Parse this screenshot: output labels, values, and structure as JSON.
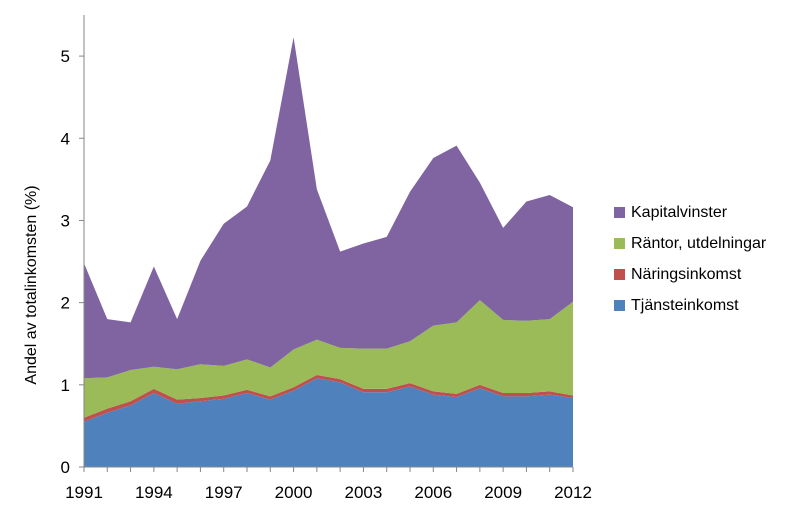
{
  "chart_data": {
    "type": "area",
    "stacked": true,
    "x": [
      1991,
      1992,
      1993,
      1994,
      1995,
      1996,
      1997,
      1998,
      1999,
      2000,
      2001,
      2002,
      2003,
      2004,
      2005,
      2006,
      2007,
      2008,
      2009,
      2010,
      2011,
      2012
    ],
    "xticks": [
      "1991",
      "1994",
      "1997",
      "2000",
      "2003",
      "2006",
      "2009",
      "2012"
    ],
    "ylabel": "Andel av totalinkomsten (%)",
    "ylim": [
      0,
      5.5
    ],
    "yticks": [
      "0",
      "1",
      "2",
      "3",
      "4",
      "5"
    ],
    "grid": false,
    "legend": "right",
    "series": [
      {
        "name": "Tjänsteinkomst",
        "color": "#4f81bd",
        "values": [
          0.55,
          0.66,
          0.75,
          0.9,
          0.77,
          0.8,
          0.83,
          0.9,
          0.82,
          0.93,
          1.08,
          1.03,
          0.91,
          0.91,
          0.98,
          0.88,
          0.85,
          0.96,
          0.86,
          0.86,
          0.88,
          0.84
        ]
      },
      {
        "name": "Näringsinkomst",
        "color": "#c0504d",
        "values": [
          0.05,
          0.05,
          0.05,
          0.05,
          0.05,
          0.04,
          0.04,
          0.04,
          0.04,
          0.04,
          0.04,
          0.04,
          0.04,
          0.04,
          0.04,
          0.04,
          0.04,
          0.04,
          0.04,
          0.04,
          0.04,
          0.03
        ]
      },
      {
        "name": "Räntor, utdelningar",
        "color": "#9bbb59",
        "values": [
          0.48,
          0.38,
          0.38,
          0.27,
          0.37,
          0.41,
          0.36,
          0.37,
          0.35,
          0.46,
          0.43,
          0.38,
          0.49,
          0.49,
          0.51,
          0.8,
          0.87,
          1.03,
          0.89,
          0.88,
          0.88,
          1.14
        ]
      },
      {
        "name": "Kapitalvinster",
        "color": "#8064a2",
        "values": [
          1.4,
          0.71,
          0.58,
          1.22,
          0.61,
          1.26,
          1.73,
          1.86,
          2.52,
          3.8,
          1.83,
          1.17,
          1.28,
          1.36,
          1.82,
          2.04,
          2.15,
          1.43,
          1.12,
          1.45,
          1.51,
          1.15
        ]
      }
    ]
  }
}
